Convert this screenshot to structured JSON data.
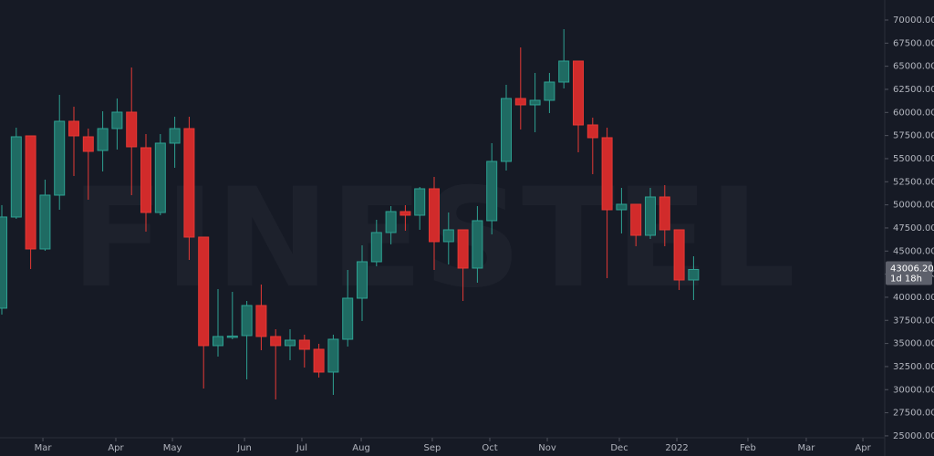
{
  "chart_data": {
    "type": "candlestick",
    "watermark": "FINESTEL",
    "open": [
      38816,
      48681,
      57465,
      45226,
      51050,
      59044,
      57366,
      55886,
      58255,
      60031,
      56182,
      49174,
      56676,
      58255,
      46509,
      34764,
      35652,
      35850,
      39107,
      35751,
      34764,
      35356,
      34369,
      31902,
      35455,
      39897,
      43845,
      47003,
      49273,
      48878,
      51741,
      46016,
      47299,
      43154,
      48286,
      54702,
      61512,
      60822,
      61315,
      63288,
      65559,
      58649,
      57268,
      49470,
      50063,
      46706,
      50852,
      47299,
      41871
    ],
    "high": [
      49968,
      58353,
      57465,
      52728,
      61907,
      60624,
      58255,
      60130,
      61512,
      64868,
      57662,
      57662,
      59538,
      59538,
      46509,
      40884,
      40587,
      39600,
      41377,
      36541,
      36541,
      35949,
      34961,
      35949,
      42956,
      45621,
      48385,
      49865,
      49964,
      51938,
      53024,
      49174,
      47299,
      49865,
      56676,
      62993,
      67039,
      64276,
      64276,
      69013,
      65559,
      59439,
      58353,
      51839,
      50063,
      51839,
      52136,
      47299,
      44437
    ],
    "low": [
      38125,
      48484,
      43055,
      45029,
      49470,
      53122,
      50556,
      53616,
      55985,
      51050,
      47102,
      48878,
      54011,
      44042,
      30125,
      33580,
      35455,
      31112,
      34271,
      28941,
      33185,
      32395,
      31310,
      29434,
      34666,
      37429,
      43351,
      45720,
      47201,
      47299,
      42956,
      43549,
      39600,
      41574,
      46806,
      53715,
      58156,
      57860,
      59933,
      62598,
      55688,
      53320,
      42068,
      46904,
      45522,
      46312,
      45522,
      40785,
      39699
    ],
    "close": [
      48685,
      57366,
      45226,
      51050,
      59044,
      57465,
      55787,
      58255,
      60031,
      56281,
      49174,
      56676,
      58255,
      46509,
      34764,
      35751,
      35800,
      39107,
      35751,
      34764,
      35356,
      34369,
      31902,
      35455,
      39897,
      43845,
      47003,
      49273,
      48878,
      51741,
      46016,
      47299,
      43154,
      48286,
      54702,
      61512,
      60822,
      61315,
      63288,
      65559,
      58649,
      57268,
      49470,
      50063,
      46706,
      50852,
      47299,
      41871,
      43006.2
    ],
    "up_color": "#1f6b63",
    "up_border": "#2ea192",
    "down_color": "#d12b2b",
    "down_border": "#e53935",
    "xlim": [
      -0.127,
      61.266
    ],
    "xticks": [
      {
        "value": 2.85,
        "label": "Mar"
      },
      {
        "value": 7.91,
        "label": "Apr"
      },
      {
        "value": 11.84,
        "label": "May"
      },
      {
        "value": 16.84,
        "label": "Jun"
      },
      {
        "value": 20.82,
        "label": "Jul"
      },
      {
        "value": 24.94,
        "label": "Aug"
      },
      {
        "value": 29.87,
        "label": "Sep"
      },
      {
        "value": 33.86,
        "label": "Oct"
      },
      {
        "value": 37.85,
        "label": "Nov"
      },
      {
        "value": 42.85,
        "label": "Dec"
      },
      {
        "value": 46.84,
        "label": "2022"
      },
      {
        "value": 51.77,
        "label": "Feb"
      },
      {
        "value": 55.82,
        "label": "Mar"
      },
      {
        "value": 59.75,
        "label": "Apr"
      }
    ],
    "ylim": [
      22820,
      72170
    ],
    "yticks": [
      {
        "value": 25000,
        "label": "25000.00"
      },
      {
        "value": 27500,
        "label": "27500.00"
      },
      {
        "value": 30000,
        "label": "30000.00"
      },
      {
        "value": 32500,
        "label": "32500.00"
      },
      {
        "value": 35000,
        "label": "35000.00"
      },
      {
        "value": 37500,
        "label": "37500.00"
      },
      {
        "value": 40000,
        "label": "40000.00"
      },
      {
        "value": 42500,
        "label": "42500.00"
      },
      {
        "value": 45000,
        "label": "45000.00"
      },
      {
        "value": 47500,
        "label": "47500.00"
      },
      {
        "value": 50000,
        "label": "50000.00"
      },
      {
        "value": 52500,
        "label": "52500.00"
      },
      {
        "value": 55000,
        "label": "55000.00"
      },
      {
        "value": 57500,
        "label": "57500.00"
      },
      {
        "value": 60000,
        "label": "60000.00"
      },
      {
        "value": 62500,
        "label": "62500.00"
      },
      {
        "value": 65000,
        "label": "65000.00"
      },
      {
        "value": 67500,
        "label": "67500.00"
      },
      {
        "value": 70000,
        "label": "70000.00"
      }
    ],
    "last_price": {
      "value": 43006.2,
      "label": "43006.20"
    },
    "countdown": "1d 18h"
  }
}
